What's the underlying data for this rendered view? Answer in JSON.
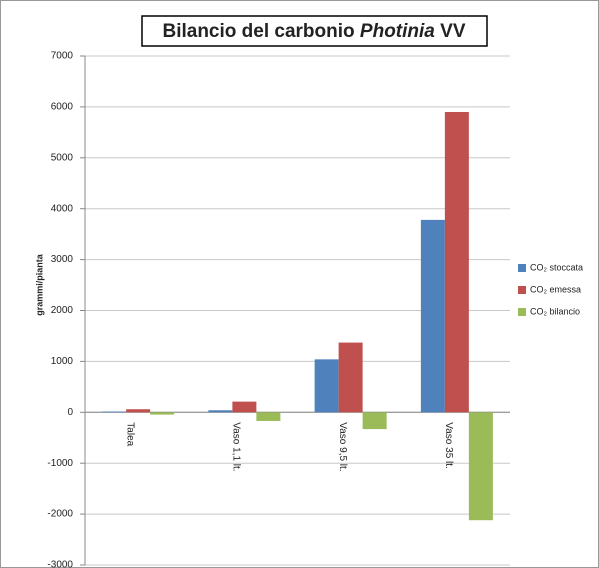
{
  "chart_data": {
    "type": "bar",
    "title_parts": [
      "Bilancio del carbonio",
      "Photinia",
      "VV"
    ],
    "y_label": "grammi/pianta",
    "categories": [
      "Talea",
      "Vaso 1,1 lt.",
      "Vaso 9,5 lt.",
      "Vaso 35 lt."
    ],
    "series": [
      {
        "name": "CO₂ stoccata",
        "color": "#4f81bd",
        "values": [
          15,
          40,
          1040,
          3780
        ]
      },
      {
        "name": "CO₂ emessa",
        "color": "#c0504d",
        "values": [
          60,
          210,
          1370,
          5900
        ]
      },
      {
        "name": "CO₂ bilancio",
        "color": "#9bbb59",
        "values": [
          -45,
          -170,
          -330,
          -2120
        ]
      }
    ],
    "ylim": [
      -3000,
      7000
    ],
    "yticks": [
      -3000,
      -2000,
      -1000,
      0,
      1000,
      2000,
      3000,
      4000,
      5000,
      6000,
      7000
    ],
    "grid": true,
    "legend": "right"
  }
}
